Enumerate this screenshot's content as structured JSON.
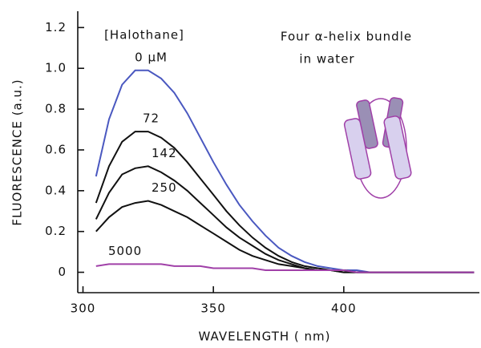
{
  "chart_data": {
    "type": "line",
    "xlabel": "WAVELENGTH ( nm)",
    "ylabel": "FLUORESCENCE (a.u.)",
    "legend_title": "[Halothane]",
    "annotations": [
      "Four α-helix bundle",
      "in water"
    ],
    "x": [
      305,
      310,
      315,
      320,
      325,
      330,
      335,
      340,
      345,
      350,
      355,
      360,
      365,
      370,
      375,
      380,
      385,
      390,
      395,
      400,
      405,
      410,
      415,
      420,
      425,
      430,
      435,
      440,
      445,
      450
    ],
    "series": [
      {
        "name": "0 μM",
        "color": "#4a58c0",
        "values": [
          0.47,
          0.75,
          0.92,
          0.99,
          0.99,
          0.95,
          0.88,
          0.78,
          0.66,
          0.54,
          0.43,
          0.33,
          0.25,
          0.18,
          0.12,
          0.08,
          0.05,
          0.03,
          0.02,
          0.01,
          0.01,
          0,
          0,
          0,
          0,
          0,
          0,
          0,
          0,
          0
        ]
      },
      {
        "name": "72",
        "color": "#111111",
        "values": [
          0.34,
          0.52,
          0.64,
          0.69,
          0.69,
          0.66,
          0.61,
          0.54,
          0.46,
          0.38,
          0.3,
          0.23,
          0.17,
          0.12,
          0.08,
          0.05,
          0.03,
          0.02,
          0.01,
          0.01,
          0,
          0,
          0,
          0,
          0,
          0,
          0,
          0,
          0,
          0
        ]
      },
      {
        "name": "142",
        "color": "#111111",
        "values": [
          0.26,
          0.39,
          0.48,
          0.51,
          0.52,
          0.49,
          0.45,
          0.4,
          0.34,
          0.28,
          0.22,
          0.17,
          0.13,
          0.09,
          0.06,
          0.04,
          0.02,
          0.01,
          0.01,
          0,
          0,
          0,
          0,
          0,
          0,
          0,
          0,
          0,
          0,
          0
        ]
      },
      {
        "name": "250",
        "color": "#111111",
        "values": [
          0.2,
          0.27,
          0.32,
          0.34,
          0.35,
          0.33,
          0.3,
          0.27,
          0.23,
          0.19,
          0.15,
          0.11,
          0.08,
          0.06,
          0.04,
          0.03,
          0.02,
          0.01,
          0.01,
          0,
          0,
          0,
          0,
          0,
          0,
          0,
          0,
          0,
          0,
          0
        ]
      },
      {
        "name": "5000",
        "color": "#a040a8",
        "values": [
          0.03,
          0.04,
          0.04,
          0.04,
          0.04,
          0.04,
          0.03,
          0.03,
          0.03,
          0.02,
          0.02,
          0.02,
          0.02,
          0.01,
          0.01,
          0.01,
          0.01,
          0.01,
          0.01,
          0.01,
          0,
          0,
          0,
          0,
          0,
          0,
          0,
          0,
          0,
          0
        ]
      }
    ],
    "xlim": [
      298,
      452
    ],
    "ylim": [
      -0.1,
      1.28
    ],
    "xticks": [
      300,
      350,
      400
    ],
    "yticks": [
      0,
      0.2,
      0.4,
      0.6,
      0.8,
      {
        "value": 1,
        "label": "1.0"
      },
      1.2
    ]
  }
}
